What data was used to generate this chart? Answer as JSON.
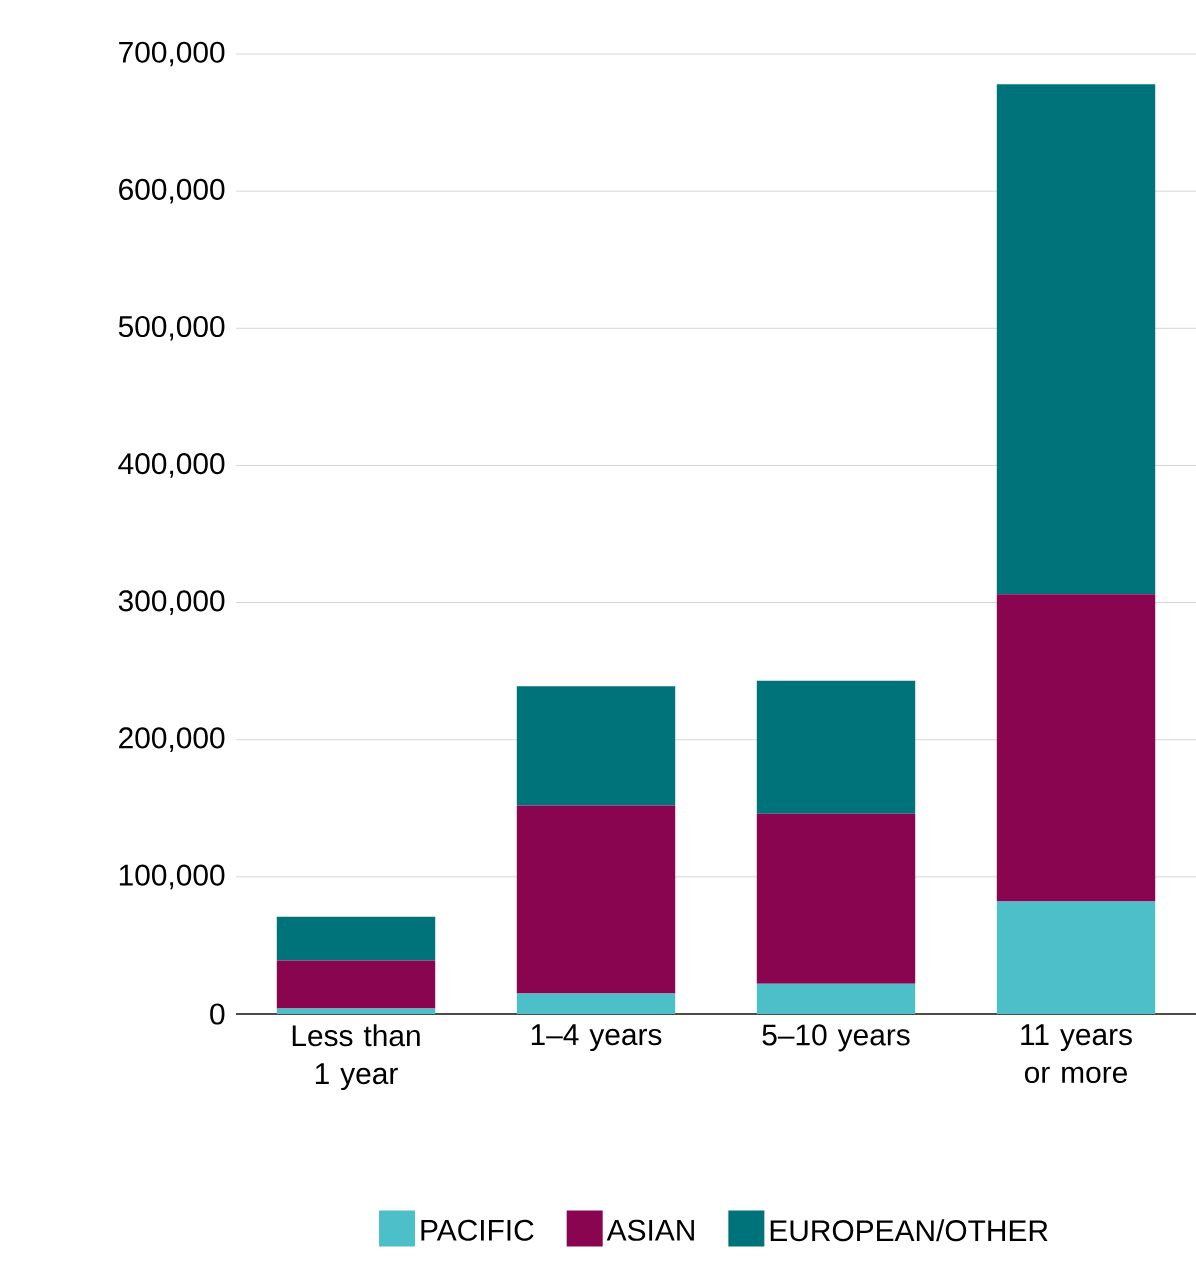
{
  "chart_data": {
    "type": "bar",
    "stacked": true,
    "categories": [
      "Less than 1 year",
      "1–4 years",
      "5–10 years",
      "11 years or more"
    ],
    "series": [
      {
        "name": "PACIFIC",
        "color": "#4dbfc8",
        "values": [
          4000,
          15000,
          22000,
          82000
        ]
      },
      {
        "name": "ASIAN",
        "color": "#8a0550",
        "values": [
          35000,
          137000,
          124000,
          224000
        ]
      },
      {
        "name": "EUROPEAN/OTHER",
        "color": "#00737a",
        "values": [
          32000,
          87000,
          97000,
          372000
        ]
      }
    ],
    "ylim": [
      0,
      700000
    ],
    "yticks": [
      0,
      {
        "value": 100000,
        "label": "100,000"
      },
      {
        "value": 200000,
        "label": "200,000"
      },
      {
        "value": 300000,
        "label": "300,000"
      },
      {
        "value": 400000,
        "label": "400,000"
      },
      {
        "value": 500000,
        "label": "500,000"
      },
      {
        "value": 600000,
        "label": "600,000"
      },
      {
        "value": 700000,
        "label": "700,000"
      }
    ],
    "grid": "y",
    "legend": "bottom"
  }
}
